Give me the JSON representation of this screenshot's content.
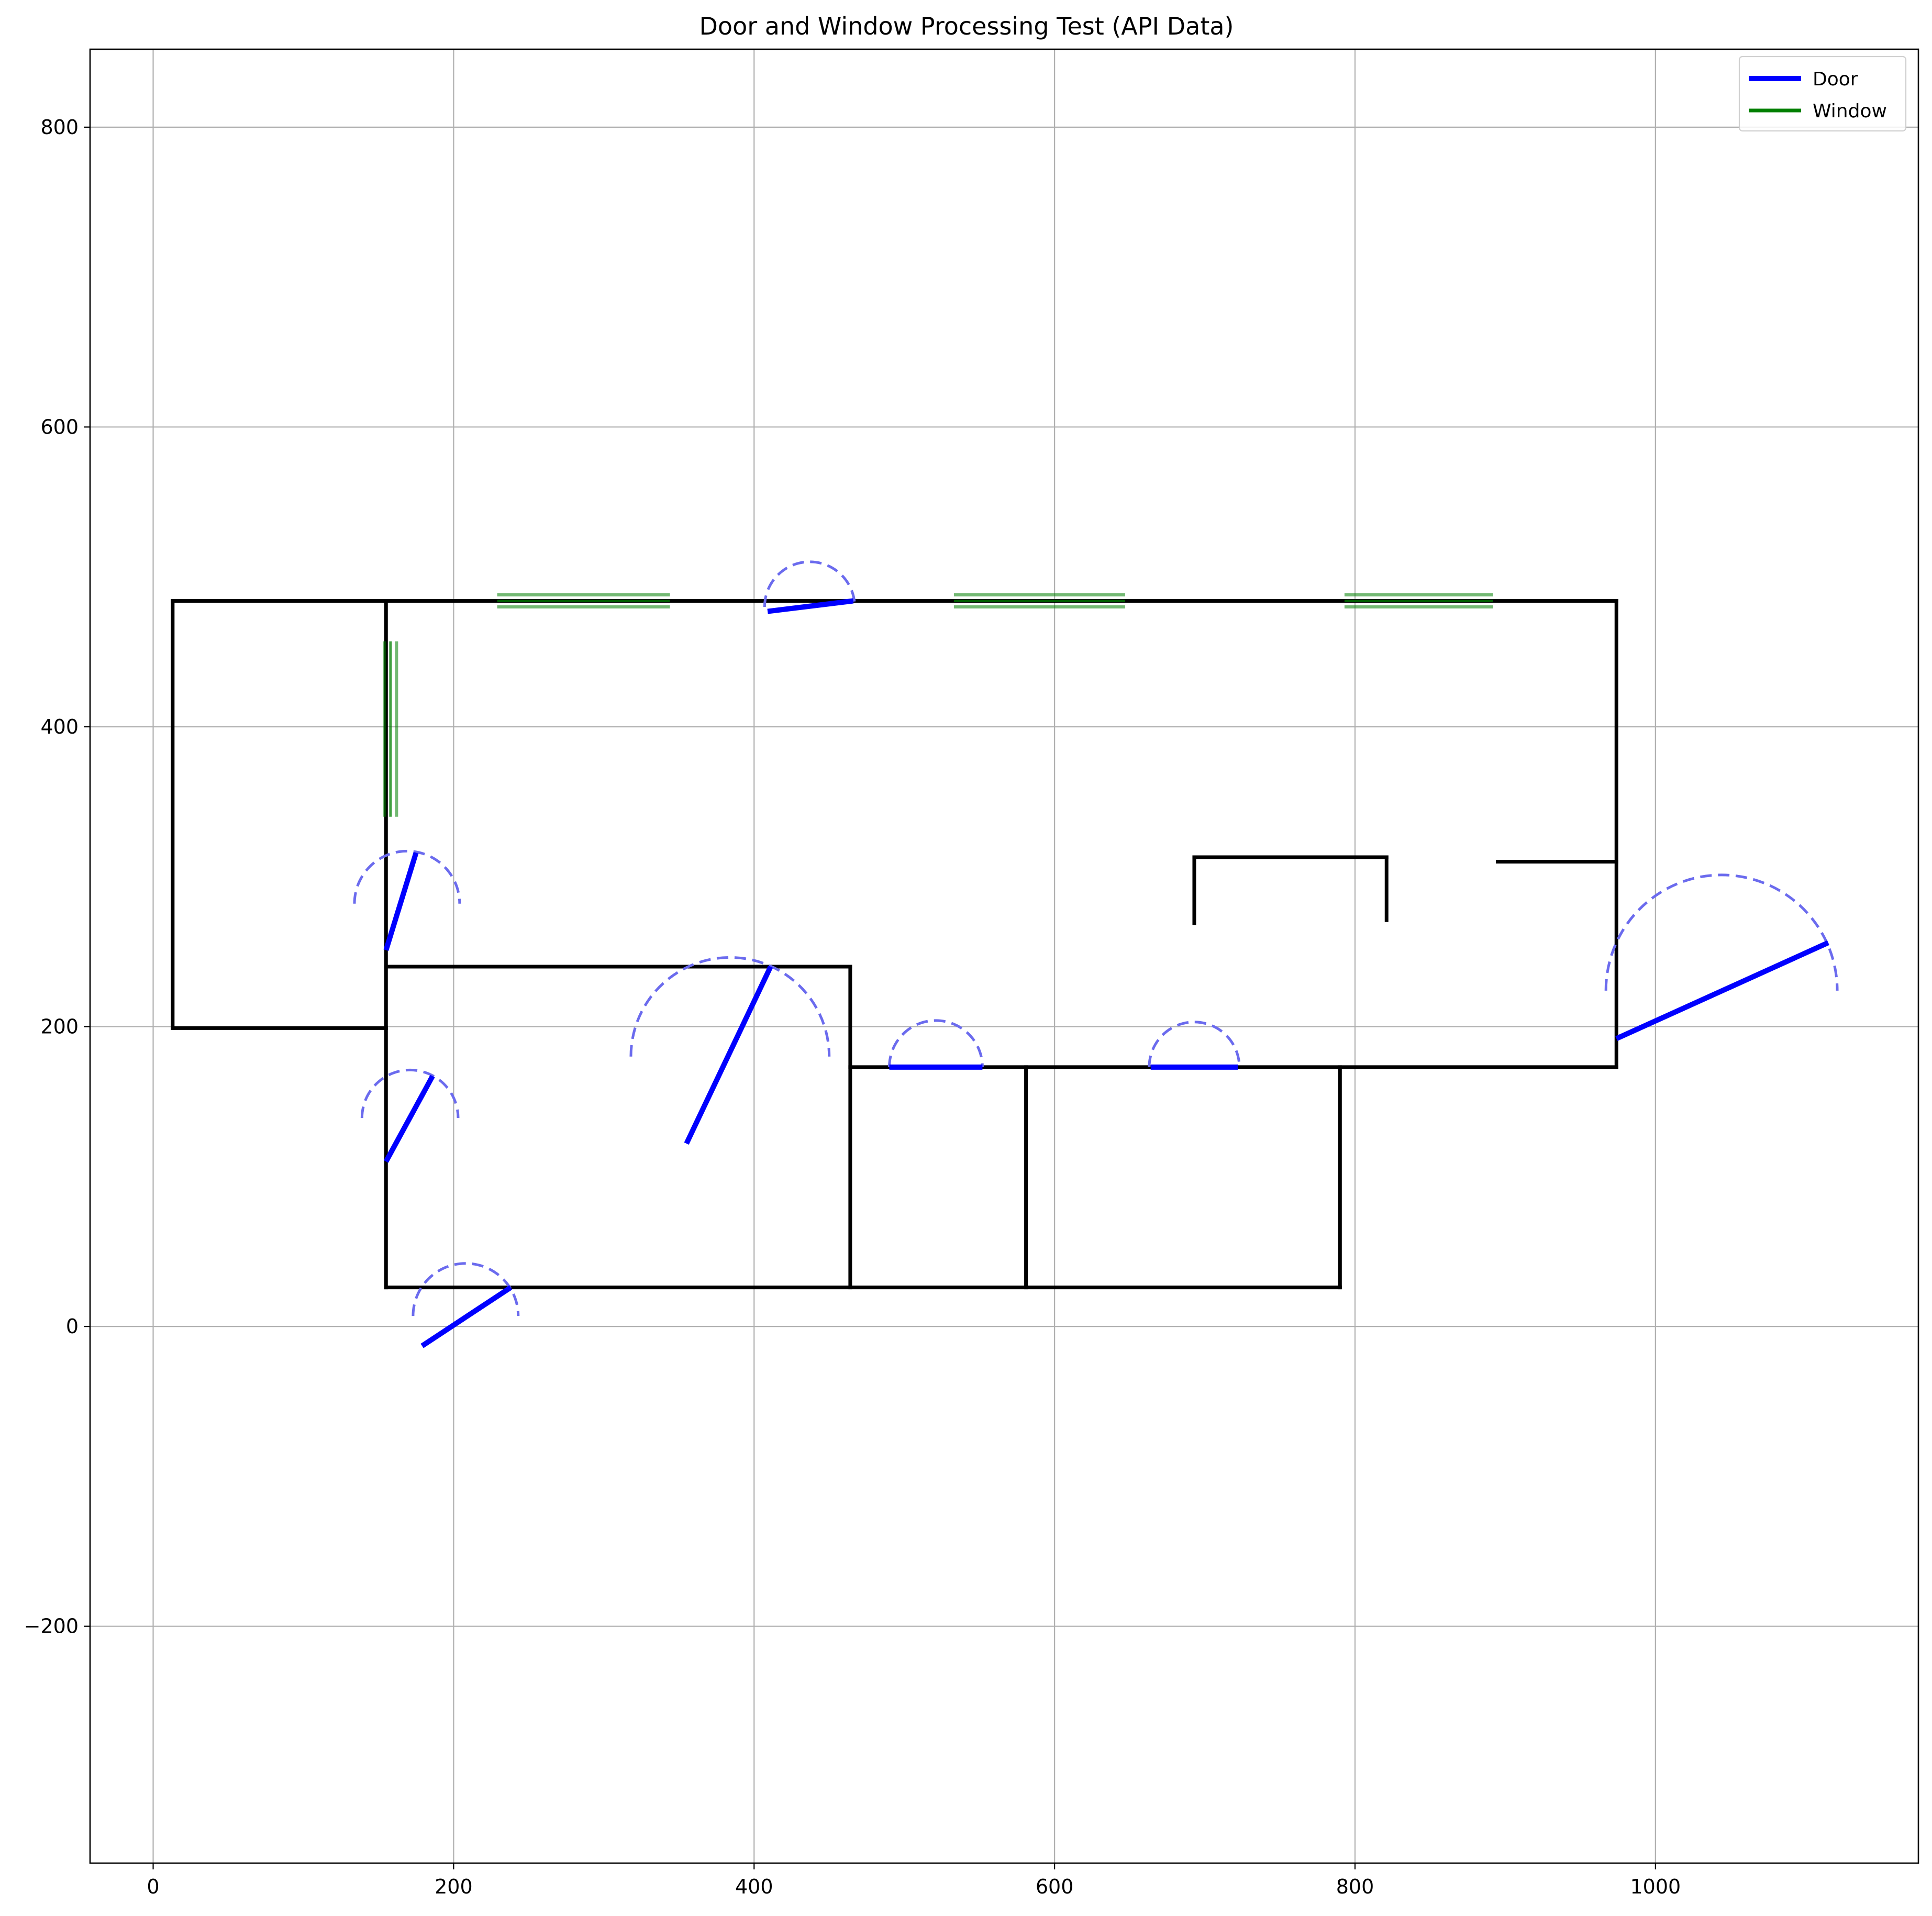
{
  "chart_data": {
    "type": "line",
    "title": "Door and Window Processing Test (API Data)",
    "xlabel": "",
    "ylabel": "",
    "xlim": [
      -42,
      1175
    ],
    "ylim": [
      -358,
      852
    ],
    "xticks": [
      0,
      200,
      400,
      600,
      800,
      1000
    ],
    "yticks": [
      -200,
      0,
      200,
      400,
      600,
      800
    ],
    "grid": true,
    "legend_position": "top-right",
    "legend": [
      {
        "label": "Door",
        "color": "#0000ff"
      },
      {
        "label": "Window",
        "color": "#008000"
      }
    ],
    "colors": {
      "wall": "#000000",
      "door": "#0000ff",
      "door_arc": "#6b6bee",
      "window": "#008000"
    },
    "walls": [
      [
        [
          13,
          484
        ],
        [
          155,
          484
        ]
      ],
      [
        [
          13,
          484
        ],
        [
          13,
          199
        ]
      ],
      [
        [
          13,
          199
        ],
        [
          155,
          199
        ]
      ],
      [
        [
          155,
          484
        ],
        [
          974,
          484
        ]
      ],
      [
        [
          155,
          484
        ],
        [
          155,
          26
        ]
      ],
      [
        [
          974,
          484
        ],
        [
          974,
          173
        ]
      ],
      [
        [
          974,
          173
        ],
        [
          464,
          173
        ]
      ],
      [
        [
          155,
          240
        ],
        [
          464,
          240
        ]
      ],
      [
        [
          464,
          240
        ],
        [
          464,
          26
        ]
      ],
      [
        [
          155,
          26
        ],
        [
          790,
          26
        ]
      ],
      [
        [
          581,
          173
        ],
        [
          581,
          26
        ]
      ],
      [
        [
          790,
          173
        ],
        [
          790,
          26
        ]
      ],
      [
        [
          693,
          269
        ],
        [
          693,
          313
        ]
      ],
      [
        [
          693,
          313
        ],
        [
          821,
          313
        ]
      ],
      [
        [
          821,
          313
        ],
        [
          821,
          271
        ]
      ],
      [
        [
          895,
          310
        ],
        [
          974,
          310
        ]
      ]
    ],
    "doors": [
      {
        "hinge": [
          409,
          477
        ],
        "end": [
          466,
          484
        ],
        "arc_center": [
          437,
          480
        ],
        "arc_radius": 30
      },
      {
        "hinge": [
          155,
          251
        ],
        "end": [
          175,
          316
        ],
        "arc_center": [
          169,
          282
        ],
        "arc_radius": 35
      },
      {
        "hinge": [
          355,
          122
        ],
        "end": [
          411,
          240
        ],
        "arc_center": [
          384,
          180
        ],
        "arc_radius": 66
      },
      {
        "hinge": [
          155,
          110
        ],
        "end": [
          186,
          167
        ],
        "arc_center": [
          171,
          139
        ],
        "arc_radius": 32
      },
      {
        "hinge": [
          179,
          -13
        ],
        "end": [
          238,
          26
        ],
        "arc_center": [
          208,
          7
        ],
        "arc_radius": 35
      },
      {
        "hinge": [
          490,
          173
        ],
        "end": [
          552,
          173
        ],
        "arc_center": [
          521,
          173
        ],
        "arc_radius": 31
      },
      {
        "hinge": [
          664,
          173
        ],
        "end": [
          722,
          173
        ],
        "arc_center": [
          693,
          173
        ],
        "arc_radius": 30
      },
      {
        "hinge": [
          974,
          192
        ],
        "end": [
          1115,
          256
        ],
        "arc_center": [
          1044,
          224
        ],
        "arc_radius": 77
      }
    ],
    "windows": [
      {
        "start": [
          229,
          484
        ],
        "end": [
          344,
          484
        ],
        "orientation": "horizontal"
      },
      {
        "start": [
          533,
          484
        ],
        "end": [
          647,
          484
        ],
        "orientation": "horizontal"
      },
      {
        "start": [
          793,
          484
        ],
        "end": [
          892,
          484
        ],
        "orientation": "horizontal"
      },
      {
        "start": [
          158,
          340
        ],
        "end": [
          158,
          457
        ],
        "orientation": "vertical"
      }
    ]
  }
}
